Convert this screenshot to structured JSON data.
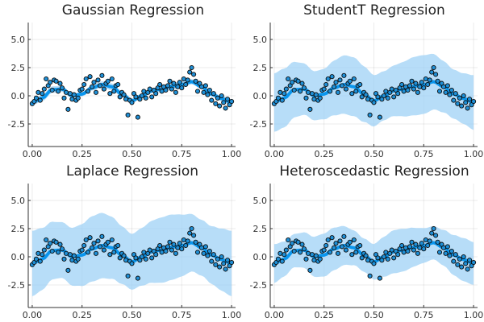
{
  "chart_data": [
    {
      "type": "scatter",
      "title": "Gaussian Regression",
      "xlim": [
        -0.02,
        1.02
      ],
      "ylim": [
        -4.5,
        6.5
      ],
      "xticks": [
        "0.00",
        "0.25",
        "0.50",
        "0.75",
        "1.00"
      ],
      "yticks": [
        "5.0",
        "2.5",
        "0.0",
        "-2.5"
      ],
      "band_halfwidth": 0.25,
      "grid": true
    },
    {
      "type": "scatter",
      "title": "StudentT Regression",
      "xlim": [
        -0.02,
        1.02
      ],
      "ylim": [
        -4.5,
        6.5
      ],
      "xticks": [
        "0.00",
        "0.25",
        "0.50",
        "0.75",
        "1.00"
      ],
      "yticks": [
        "5.0",
        "2.5",
        "0.0",
        "-2.5"
      ],
      "band_halfwidth": 2.4,
      "grid": true
    },
    {
      "type": "scatter",
      "title": "Laplace Regression",
      "xlim": [
        -0.02,
        1.02
      ],
      "ylim": [
        -4.5,
        6.5
      ],
      "xticks": [
        "0.00",
        "0.25",
        "0.50",
        "0.75",
        "1.00"
      ],
      "yticks": [
        "5.0",
        "2.5",
        "0.0",
        "-2.5"
      ],
      "band_halfwidth": 2.7,
      "grid": true
    },
    {
      "type": "scatter",
      "title": "Heteroscedastic Regression",
      "xlim": [
        -0.02,
        1.02
      ],
      "ylim": [
        -4.5,
        6.5
      ],
      "xticks": [
        "0.00",
        "0.25",
        "0.50",
        "0.75",
        "1.00"
      ],
      "yticks": [
        "5.0",
        "2.5",
        "0.0",
        "-2.5"
      ],
      "band_halfwidth": 1.7,
      "grid": true
    }
  ],
  "shared_data": {
    "x": [
      0.0,
      0.01,
      0.02,
      0.03,
      0.04,
      0.05,
      0.06,
      0.07,
      0.08,
      0.09,
      0.1,
      0.11,
      0.12,
      0.13,
      0.14,
      0.15,
      0.16,
      0.17,
      0.18,
      0.19,
      0.2,
      0.21,
      0.22,
      0.23,
      0.24,
      0.25,
      0.26,
      0.27,
      0.28,
      0.29,
      0.3,
      0.31,
      0.32,
      0.33,
      0.34,
      0.35,
      0.36,
      0.37,
      0.38,
      0.39,
      0.4,
      0.41,
      0.42,
      0.43,
      0.44,
      0.45,
      0.46,
      0.47,
      0.48,
      0.49,
      0.5,
      0.51,
      0.52,
      0.53,
      0.54,
      0.55,
      0.56,
      0.57,
      0.58,
      0.59,
      0.6,
      0.61,
      0.62,
      0.63,
      0.64,
      0.65,
      0.66,
      0.67,
      0.68,
      0.69,
      0.7,
      0.71,
      0.72,
      0.73,
      0.74,
      0.75,
      0.76,
      0.77,
      0.78,
      0.79,
      0.8,
      0.81,
      0.82,
      0.83,
      0.84,
      0.85,
      0.86,
      0.87,
      0.88,
      0.89,
      0.9,
      0.91,
      0.92,
      0.93,
      0.94,
      0.95,
      0.96,
      0.97,
      0.98,
      0.99,
      1.0
    ],
    "y": [
      -0.7,
      -0.5,
      -0.2,
      0.3,
      -0.4,
      0.2,
      0.6,
      1.5,
      0.9,
      1.2,
      0.5,
      1.4,
      1.3,
      0.4,
      1.1,
      0.7,
      -0.2,
      0.3,
      -1.2,
      0.2,
      -0.3,
      0.1,
      -0.4,
      -0.2,
      0.5,
      0.6,
      1.0,
      1.5,
      0.4,
      1.7,
      0.8,
      1.2,
      0.3,
      1.4,
      0.9,
      1.8,
      0.6,
      1.1,
      1.3,
      0.2,
      1.5,
      0.4,
      0.9,
      1.0,
      -0.1,
      0.3,
      0.1,
      -0.3,
      -1.7,
      -0.4,
      -0.6,
      0.2,
      -0.1,
      -1.9,
      -0.3,
      0.0,
      0.4,
      -0.2,
      0.3,
      0.6,
      -0.1,
      0.5,
      0.2,
      0.7,
      1.0,
      0.4,
      0.8,
      0.5,
      0.9,
      1.3,
      0.6,
      1.1,
      0.3,
      0.8,
      1.2,
      0.7,
      1.5,
      1.0,
      1.4,
      2.1,
      2.5,
      1.9,
      1.3,
      0.4,
      1.1,
      0.8,
      0.3,
      0.9,
      0.1,
      0.5,
      -0.4,
      0.2,
      -0.7,
      -0.2,
      -0.9,
      0.0,
      -0.6,
      -1.1,
      -0.3,
      -0.8,
      -0.5
    ],
    "fit_x": [
      0.0,
      0.05,
      0.1,
      0.15,
      0.2,
      0.25,
      0.3,
      0.35,
      0.4,
      0.45,
      0.5,
      0.55,
      0.6,
      0.65,
      0.7,
      0.75,
      0.8,
      0.85,
      0.9,
      0.95,
      1.0
    ],
    "fit_y": [
      -0.6,
      -0.2,
      0.55,
      0.6,
      0.0,
      0.15,
      0.7,
      1.0,
      0.8,
      0.15,
      -0.45,
      0.0,
      0.45,
      0.6,
      0.85,
      1.0,
      1.25,
      0.8,
      0.15,
      -0.25,
      -0.6
    ]
  },
  "colors": {
    "points": "#1f8fd6",
    "point_edge": "#0b0b0b",
    "line": "#0a96ee",
    "band": "#9fd2f5"
  }
}
